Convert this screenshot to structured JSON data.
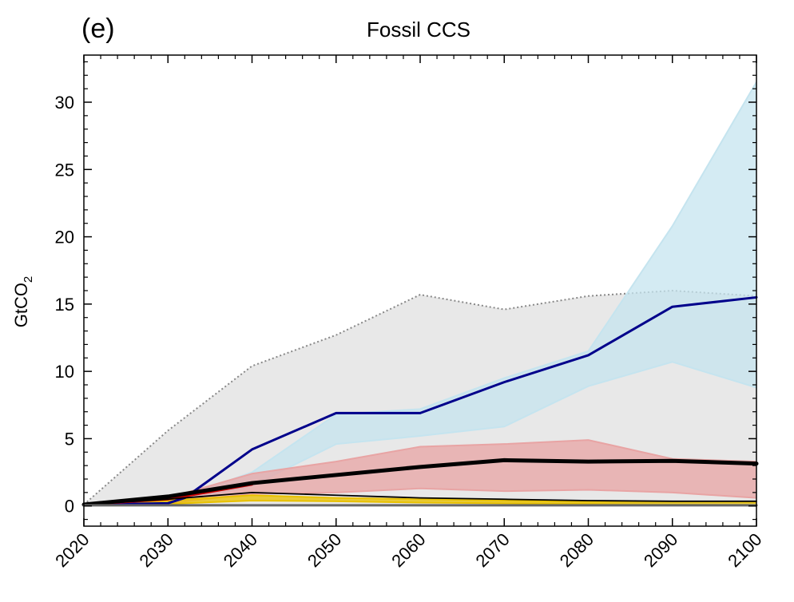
{
  "chart_data": {
    "type": "area",
    "panel_label": "(e)",
    "title": "Fossil CCS",
    "xlabel": "",
    "ylabel_main": "GtCO",
    "ylabel_sub": "2",
    "xlim": [
      2020,
      2100
    ],
    "ylim": [
      -1.5,
      33.5
    ],
    "x_ticks": [
      2020,
      2030,
      2040,
      2050,
      2060,
      2070,
      2080,
      2090,
      2100
    ],
    "x_tick_labels": [
      "2020",
      "2030",
      "2040",
      "2050",
      "2060",
      "2070",
      "2080",
      "2090",
      "2100"
    ],
    "y_ticks": [
      0,
      5,
      10,
      15,
      20,
      25,
      30
    ],
    "y_tick_labels": [
      "0",
      "5",
      "10",
      "15",
      "20",
      "25",
      "30"
    ],
    "grid": false,
    "bands": [
      {
        "color": "#e8e8e8",
        "edge_color": "#888888",
        "x": [
          2020,
          2030,
          2040,
          2050,
          2060,
          2070,
          2080,
          2090,
          2100
        ],
        "upper": [
          0.1,
          5.6,
          10.4,
          12.7,
          15.7,
          14.6,
          15.6,
          16.0,
          15.6
        ],
        "lower": [
          0,
          0,
          0,
          0,
          0,
          0,
          0,
          0,
          0
        ]
      },
      {
        "color": "#c5e4ef",
        "x": [
          2020,
          2030,
          2040,
          2050,
          2060,
          2070,
          2080,
          2090,
          2100
        ],
        "upper": [
          0.1,
          0.3,
          2.5,
          6.8,
          7.2,
          9.5,
          11.5,
          20.8,
          31.5
        ],
        "lower": [
          0.1,
          0.1,
          1.5,
          4.6,
          5.2,
          5.9,
          8.9,
          10.7,
          8.8
        ]
      },
      {
        "color": "#e8a4a4",
        "x": [
          2020,
          2030,
          2040,
          2050,
          2060,
          2070,
          2080,
          2090,
          2100
        ],
        "upper": [
          0.1,
          0.6,
          2.4,
          3.3,
          4.4,
          4.6,
          4.9,
          3.5,
          3.3
        ],
        "lower": [
          0.1,
          0.2,
          0.9,
          1.0,
          1.3,
          1.1,
          1.2,
          1.0,
          0.6
        ]
      },
      {
        "color": "#e8c000",
        "x": [
          2020,
          2030,
          2040,
          2050,
          2060,
          2070,
          2080,
          2090,
          2100
        ],
        "upper": [
          0.1,
          0.4,
          0.8,
          0.6,
          0.5,
          0.4,
          0.3,
          0.3,
          0.3
        ],
        "lower": [
          0.05,
          0.15,
          0.4,
          0.35,
          0.25,
          0.2,
          0.15,
          0.1,
          0.05
        ]
      }
    ],
    "series": [
      {
        "color": "#00008b",
        "style": "solid",
        "x": [
          2020,
          2030,
          2032,
          2040,
          2050,
          2060,
          2070,
          2080,
          2090,
          2100
        ],
        "values": [
          0.1,
          0.2,
          0.6,
          4.2,
          6.9,
          6.9,
          9.2,
          11.2,
          14.8,
          15.5
        ]
      },
      {
        "color": "#cc0000",
        "style": "solid",
        "x": [
          2020,
          2030,
          2040
        ],
        "values": [
          0.1,
          0.5,
          1.6
        ]
      },
      {
        "color": "#000000",
        "style": "thin",
        "x": [
          2020,
          2030,
          2040,
          2050,
          2060,
          2070,
          2080,
          2090,
          2100
        ],
        "values": [
          0.1,
          0.5,
          1.0,
          0.8,
          0.6,
          0.5,
          0.4,
          0.35,
          0.35
        ]
      },
      {
        "color": "#000000",
        "style": "thick",
        "x": [
          2020,
          2030,
          2040,
          2050,
          2060,
          2070,
          2080,
          2090,
          2100
        ],
        "values": [
          0.1,
          0.7,
          1.7,
          2.3,
          2.9,
          3.4,
          3.3,
          3.35,
          3.15
        ]
      },
      {
        "color": "#666666",
        "style": "solid",
        "x": [
          2020,
          2030,
          2040,
          2050,
          2060,
          2070,
          2080,
          2090,
          2100
        ],
        "values": [
          0.05,
          0.05,
          0.05,
          0.05,
          0.05,
          0.05,
          0.05,
          0.05,
          0.05
        ]
      }
    ]
  }
}
